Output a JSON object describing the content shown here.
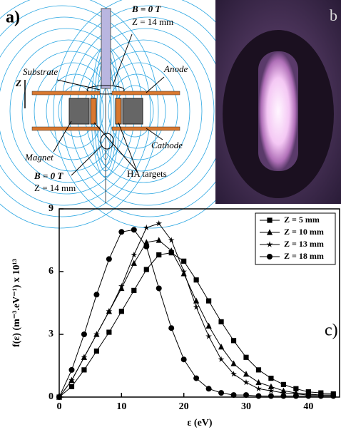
{
  "diagram": {
    "panel_label": "a)",
    "top_field": "B = 0 T",
    "top_z": "Z = 14 mm",
    "substrate": "Substrate",
    "anode": "Anode",
    "z": "Z",
    "magnet": "Magnet",
    "cathode": "Cathode",
    "bottom_field": "B = 0 T",
    "bottom_z": "Z = 14 mm",
    "targets": "HA targets"
  },
  "photo": {
    "panel_label": "b"
  },
  "chart_data": {
    "type": "line",
    "annotation": "c)",
    "x_label": "ε (eV)",
    "y_label": "f(ε) (m⁻³.eV⁻¹) x 10¹³",
    "x": [
      0,
      2,
      4,
      6,
      8,
      10,
      12,
      14,
      16,
      18,
      20,
      22,
      24,
      26,
      28,
      30,
      32,
      34,
      36,
      38,
      40,
      42,
      44
    ],
    "series": [
      {
        "name": "Z = 5 mm",
        "color": "#000000",
        "marker": "square",
        "values": [
          0,
          0.5,
          1.3,
          2.2,
          3.1,
          4.1,
          5.1,
          6.1,
          6.8,
          6.9,
          6.5,
          5.6,
          4.6,
          3.6,
          2.7,
          1.9,
          1.3,
          0.9,
          0.6,
          0.4,
          0.25,
          0.2,
          0.15
        ]
      },
      {
        "name": "Z = 10 mm",
        "color": "#000000",
        "marker": "triangle",
        "values": [
          0,
          0.8,
          1.9,
          3.0,
          4.1,
          5.2,
          6.4,
          7.4,
          7.5,
          7.0,
          5.9,
          4.6,
          3.4,
          2.4,
          1.6,
          1.1,
          0.7,
          0.5,
          0.3,
          0.2,
          0.15,
          0.1,
          0.1
        ]
      },
      {
        "name": "Z = 13 mm",
        "color": "#000000",
        "marker": "star",
        "values": [
          0,
          0.8,
          1.9,
          3.0,
          4.1,
          5.3,
          6.8,
          8.1,
          8.3,
          7.5,
          6.0,
          4.3,
          2.9,
          1.8,
          1.1,
          0.7,
          0.4,
          0.3,
          0.2,
          0.15,
          0.1,
          0.1,
          0.1
        ]
      },
      {
        "name": "Z = 18 mm",
        "color": "#000000",
        "marker": "circle",
        "values": [
          0,
          1.3,
          3.0,
          4.9,
          6.6,
          7.9,
          8.0,
          7.2,
          5.2,
          3.3,
          1.8,
          0.9,
          0.4,
          0.2,
          0.1,
          0.1,
          0.05,
          0.05,
          0.05,
          0.05,
          0.05,
          0.05,
          0.05
        ]
      }
    ],
    "xlim": [
      0,
      45
    ],
    "xticks": [
      0,
      10,
      20,
      30,
      40
    ],
    "ylim": [
      0,
      9
    ],
    "yticks": [
      0,
      3,
      6,
      9
    ],
    "legend": "upper right"
  }
}
